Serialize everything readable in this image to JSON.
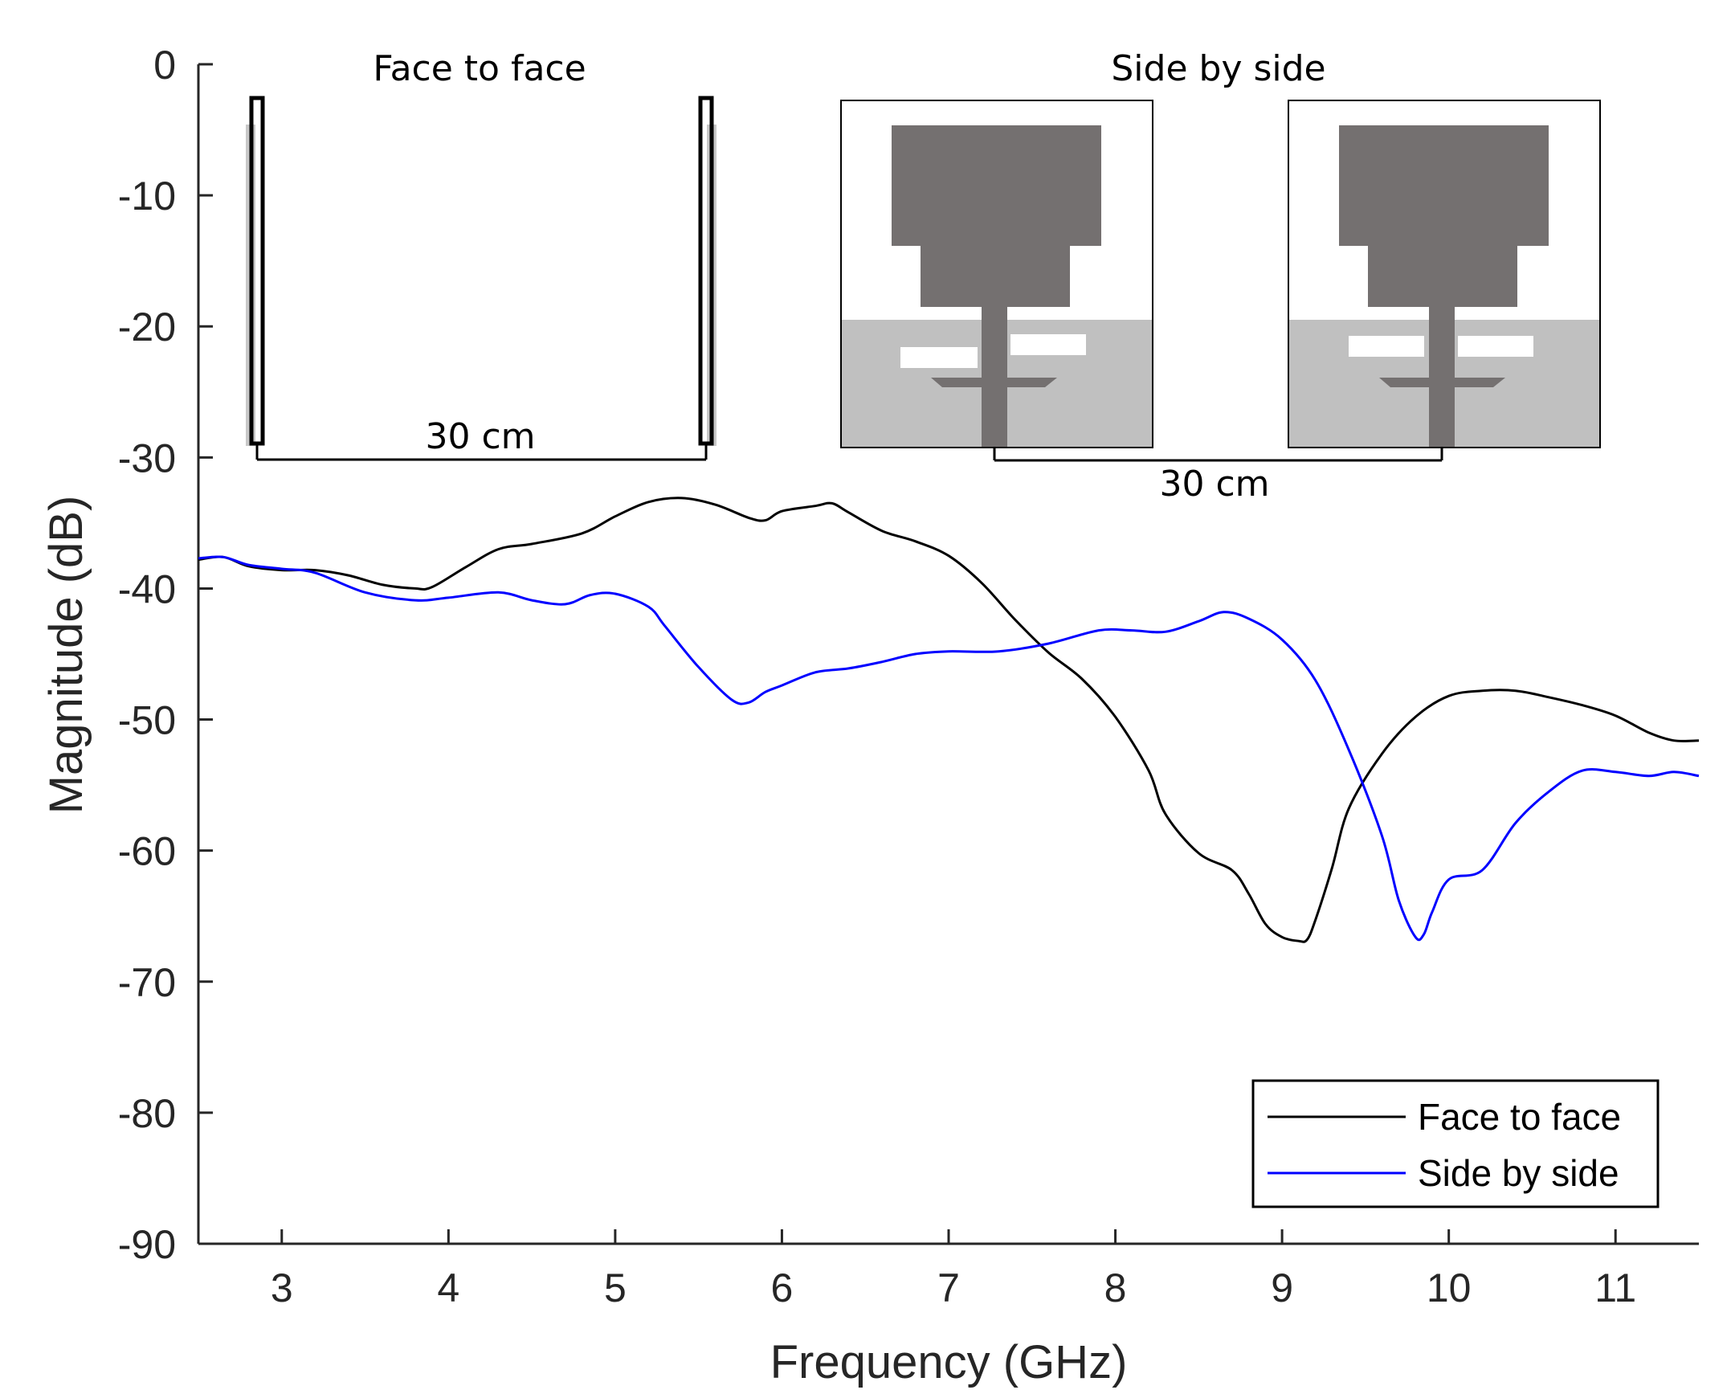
{
  "chart_data": {
    "type": "line",
    "title": "",
    "xlabel": "Frequency (GHz)",
    "ylabel": "Magnitude (dB)",
    "xlim": [
      2.5,
      11.5
    ],
    "ylim": [
      -90,
      0
    ],
    "xticks": [
      3,
      4,
      5,
      6,
      7,
      8,
      9,
      10,
      11
    ],
    "yticks": [
      0,
      -10,
      -20,
      -30,
      -40,
      -50,
      -60,
      -70,
      -80,
      -90
    ],
    "grid": false,
    "legend": "bottom-right",
    "colors": {
      "face_to_face": "#000000",
      "side_by_side": "#0000ff"
    },
    "series": [
      {
        "name": "Face to face",
        "x": [
          2.5,
          2.65,
          2.8,
          3.0,
          3.2,
          3.4,
          3.6,
          3.8,
          3.9,
          4.1,
          4.3,
          4.5,
          4.8,
          5.0,
          5.2,
          5.4,
          5.6,
          5.8,
          5.9,
          6.0,
          6.2,
          6.3,
          6.4,
          6.6,
          6.8,
          7.0,
          7.2,
          7.4,
          7.6,
          7.8,
          8.0,
          8.2,
          8.3,
          8.5,
          8.7,
          8.8,
          8.9,
          9.0,
          9.1,
          9.15,
          9.2,
          9.3,
          9.4,
          9.6,
          9.8,
          10.0,
          10.2,
          10.4,
          10.6,
          10.8,
          11.0,
          11.2,
          11.35,
          11.5
        ],
        "values": [
          -37.8,
          -37.6,
          -38.3,
          -38.6,
          -38.6,
          -39.0,
          -39.7,
          -40.0,
          -39.9,
          -38.4,
          -37.0,
          -36.6,
          -35.8,
          -34.5,
          -33.4,
          -33.1,
          -33.6,
          -34.6,
          -34.8,
          -34.1,
          -33.7,
          -33.5,
          -34.2,
          -35.6,
          -36.4,
          -37.5,
          -39.6,
          -42.4,
          -44.9,
          -46.9,
          -49.8,
          -53.9,
          -57.2,
          -60.2,
          -61.5,
          -63.3,
          -65.6,
          -66.6,
          -66.9,
          -66.8,
          -65.3,
          -61.3,
          -56.8,
          -52.6,
          -49.8,
          -48.2,
          -47.8,
          -47.8,
          -48.3,
          -48.9,
          -49.7,
          -51.0,
          -51.6,
          -51.6
        ]
      },
      {
        "name": "Side by side",
        "x": [
          2.5,
          2.65,
          2.8,
          3.0,
          3.2,
          3.5,
          3.8,
          4.0,
          4.3,
          4.5,
          4.7,
          4.85,
          5.0,
          5.2,
          5.3,
          5.5,
          5.7,
          5.8,
          5.9,
          6.0,
          6.2,
          6.4,
          6.6,
          6.8,
          7.0,
          7.3,
          7.6,
          7.9,
          8.1,
          8.3,
          8.5,
          8.65,
          8.8,
          9.0,
          9.2,
          9.4,
          9.6,
          9.7,
          9.8,
          9.85,
          9.9,
          10.0,
          10.2,
          10.4,
          10.6,
          10.8,
          11.0,
          11.2,
          11.35,
          11.5
        ],
        "values": [
          -37.7,
          -37.6,
          -38.2,
          -38.5,
          -38.8,
          -40.3,
          -40.9,
          -40.7,
          -40.3,
          -40.9,
          -41.2,
          -40.5,
          -40.4,
          -41.4,
          -42.9,
          -46.0,
          -48.5,
          -48.7,
          -47.9,
          -47.4,
          -46.4,
          -46.1,
          -45.6,
          -45.0,
          -44.8,
          -44.8,
          -44.2,
          -43.2,
          -43.2,
          -43.3,
          -42.5,
          -41.8,
          -42.3,
          -43.9,
          -47.0,
          -52.3,
          -58.9,
          -63.8,
          -66.6,
          -66.4,
          -64.7,
          -62.2,
          -61.5,
          -57.9,
          -55.5,
          -53.9,
          -54.0,
          -54.3,
          -54.0,
          -54.3
        ]
      }
    ]
  },
  "insets": {
    "left_title": "Face to face",
    "left_distance": "30 cm",
    "right_title": "Side by side",
    "right_distance": "30 cm"
  }
}
